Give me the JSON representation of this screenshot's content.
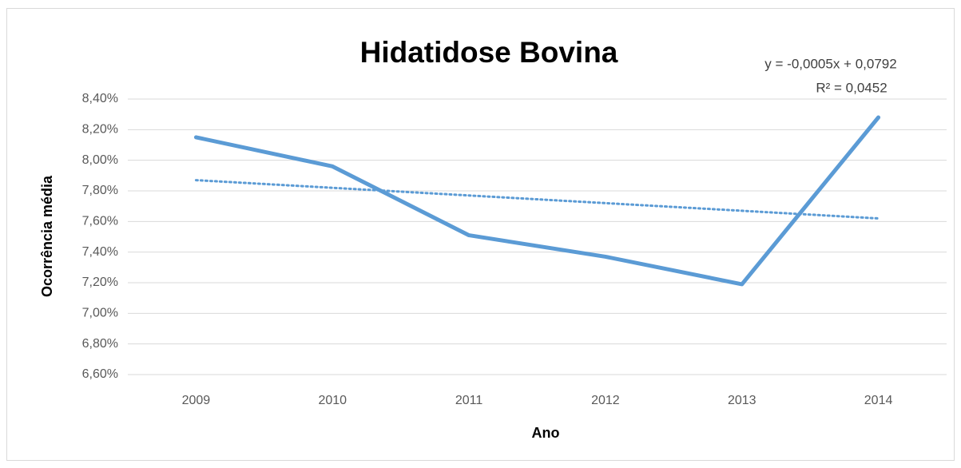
{
  "chart_data": {
    "type": "line",
    "title": "Hidatidose Bovina",
    "x_label": "Ano",
    "y_label": "Ocorrência média",
    "categories": [
      "2009",
      "2010",
      "2011",
      "2012",
      "2013",
      "2014"
    ],
    "series": [
      {
        "color": "#5b9bd5",
        "values": [
          8.15,
          7.96,
          7.51,
          7.37,
          7.19,
          8.28
        ]
      }
    ],
    "trendline": {
      "color": "#5b9bd5",
      "values": [
        7.87,
        7.82,
        7.77,
        7.72,
        7.67,
        7.62
      ],
      "equation": "y = -0,0005x + 0,0792",
      "r_squared": "R² = 0,0452"
    },
    "ylim": [
      6.6,
      8.4
    ],
    "yticks": [
      {
        "value": 6.6,
        "label": "6,60%"
      },
      {
        "value": 6.8,
        "label": "6,80%"
      },
      {
        "value": 7.0,
        "label": "7,00%"
      },
      {
        "value": 7.2,
        "label": "7,20%"
      },
      {
        "value": 7.4,
        "label": "7,40%"
      },
      {
        "value": 7.6,
        "label": "7,60%"
      },
      {
        "value": 7.8,
        "label": "7,80%"
      },
      {
        "value": 8.0,
        "label": "8,00%"
      },
      {
        "value": 8.2,
        "label": "8,20%"
      },
      {
        "value": 8.4,
        "label": "8,40%"
      }
    ],
    "grid": true
  }
}
